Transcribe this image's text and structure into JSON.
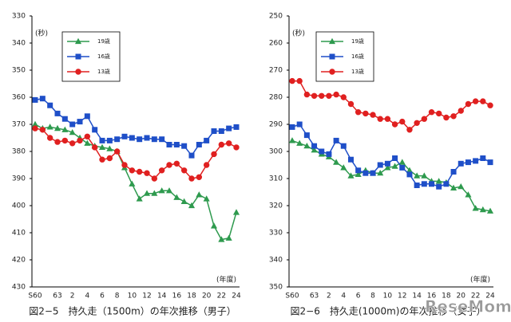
{
  "chart_data": [
    {
      "type": "line",
      "title": "図2−5　持久走（1500m）の年次推移（男子）",
      "y_label": "(秒)",
      "x_label": "(年度)",
      "categories": [
        "S60",
        null,
        null,
        "63",
        null,
        "2",
        null,
        "4",
        null,
        "6",
        null,
        "8",
        null,
        "10",
        null,
        "12",
        null,
        "14",
        null,
        "16",
        null,
        "18",
        null,
        "20",
        null,
        "22",
        null,
        "24"
      ],
      "ylim": [
        430,
        330
      ],
      "yticks": [
        330,
        340,
        350,
        360,
        370,
        380,
        390,
        400,
        410,
        420,
        430
      ],
      "grid": false,
      "series": [
        {
          "name": "19歳",
          "color": "#2e9a4e",
          "marker": "triangle",
          "values": [
            370,
            371.5,
            371,
            371.5,
            372,
            373,
            375,
            377,
            378,
            378.5,
            379,
            380,
            386,
            392,
            397.5,
            395.5,
            395.5,
            394.5,
            394.5,
            397,
            398.5,
            400,
            396,
            397.5,
            407.5,
            412.5,
            412,
            402.5
          ]
        },
        {
          "name": "16歳",
          "color": "#1f4fc8",
          "marker": "square",
          "values": [
            361,
            360.5,
            363,
            366,
            368,
            370,
            369,
            367,
            372,
            376,
            376,
            375.5,
            374.5,
            375,
            375.5,
            375,
            375.5,
            375.5,
            377.5,
            377.5,
            378,
            381.5,
            377.5,
            376,
            372.5,
            372.5,
            371.5,
            371
          ]
        },
        {
          "name": "13歳",
          "color": "#e02020",
          "marker": "circle",
          "values": [
            371.5,
            372,
            375,
            376.5,
            376,
            377,
            376,
            374.5,
            378.5,
            383,
            382.5,
            380,
            385,
            387,
            387.5,
            388,
            390,
            387,
            385,
            384.5,
            387,
            390,
            389.5,
            385,
            381,
            377.5,
            377,
            378.5
          ]
        }
      ]
    },
    {
      "type": "line",
      "title": "図2−6　持久走(1000m)の年次推移（女子）",
      "y_label": "(秒)",
      "x_label": "(年度)",
      "categories": [
        "S60",
        null,
        null,
        "63",
        null,
        "2",
        null,
        "4",
        null,
        "6",
        null,
        "8",
        null,
        "10",
        null,
        "12",
        null,
        "14",
        null,
        "16",
        null,
        "18",
        null,
        "20",
        null,
        "22",
        null,
        "24"
      ],
      "ylim": [
        350,
        250
      ],
      "yticks": [
        250,
        260,
        270,
        280,
        290,
        300,
        310,
        320,
        330,
        340,
        350
      ],
      "grid": false,
      "series": [
        {
          "name": "19歳",
          "color": "#2e9a4e",
          "marker": "triangle",
          "values": [
            296,
            297,
            298,
            299.5,
            301,
            302,
            304,
            306,
            309,
            308.5,
            307,
            308,
            308,
            306,
            305.5,
            304,
            307,
            309,
            309,
            311,
            311,
            311.5,
            313.5,
            313,
            316,
            321,
            321.5,
            322
          ]
        },
        {
          "name": "16歳",
          "color": "#1f4fc8",
          "marker": "square",
          "values": [
            291,
            290,
            294,
            298,
            300,
            301,
            296,
            298,
            303,
            307,
            308,
            308,
            305,
            304.5,
            302.5,
            306,
            308.5,
            312.5,
            312,
            312,
            313,
            312,
            307.5,
            304.5,
            304,
            303.5,
            302.5,
            304
          ]
        },
        {
          "name": "13歳",
          "color": "#e02020",
          "marker": "circle",
          "values": [
            274,
            274,
            279,
            279.5,
            279.5,
            279.5,
            279,
            280,
            282.5,
            285.5,
            286,
            286.5,
            288,
            288,
            290,
            289,
            292,
            289.5,
            288,
            285.5,
            286,
            287.5,
            287,
            285,
            282.5,
            281.5,
            281.5,
            283
          ]
        }
      ]
    }
  ],
  "watermark": "ReseMom"
}
